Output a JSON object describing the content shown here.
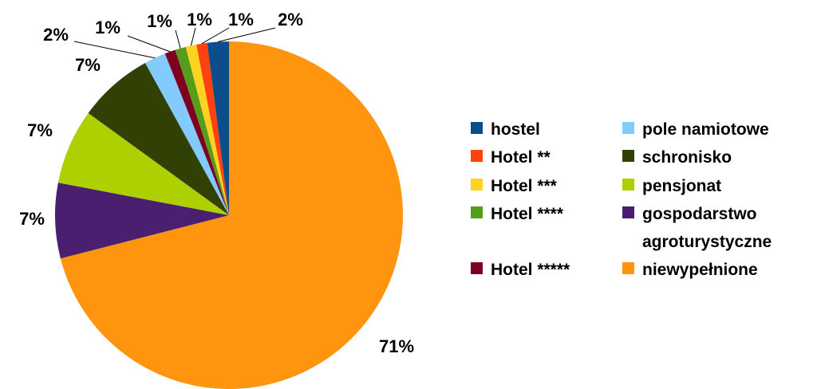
{
  "chart_data": {
    "type": "pie",
    "title": "",
    "series": [
      {
        "name": "hostel",
        "value": 2,
        "label": "2%",
        "color": "#0E4D8C"
      },
      {
        "name": "Hotel **",
        "value": 1,
        "label": "1%",
        "color": "#FF420E"
      },
      {
        "name": "Hotel ***",
        "value": 1,
        "label": "1%",
        "color": "#FFD320"
      },
      {
        "name": "Hotel ****",
        "value": 1,
        "label": "1%",
        "color": "#579D1C"
      },
      {
        "name": "Hotel *****",
        "value": 1,
        "label": "1%",
        "color": "#7E0021"
      },
      {
        "name": "pole namiotowe",
        "value": 2,
        "label": "2%",
        "color": "#83CAFF"
      },
      {
        "name": "schronisko",
        "value": 7,
        "label": "7%",
        "color": "#314004"
      },
      {
        "name": "pensjonat",
        "value": 7,
        "label": "7%",
        "color": "#AECF00"
      },
      {
        "name": "gospodarstwo agroturystyczne",
        "value": 7,
        "label": "7%",
        "color": "#4B1F6F"
      },
      {
        "name": "niewypełnione",
        "value": 71,
        "label": "71%",
        "color": "#FF950E"
      }
    ],
    "legend": {
      "position": "right",
      "columns": [
        [
          "hostel",
          "Hotel **",
          "Hotel ***",
          "Hotel ****",
          "Hotel *****"
        ],
        [
          "pole namiotowe",
          "schronisko",
          "pensjonat",
          "gospodarstwo agroturystyczne",
          "niewypełnione"
        ]
      ]
    }
  }
}
